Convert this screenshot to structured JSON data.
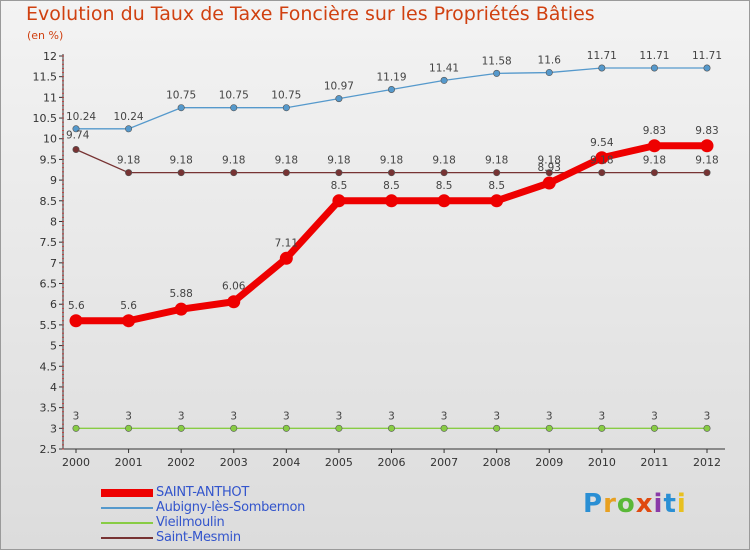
{
  "header": {
    "title": "Evolution du Taux de Taxe Foncière sur les Propriétés Bâties",
    "unit": "(en %)"
  },
  "logo": {
    "text": "Proxiti",
    "colors": [
      "#2a8fd4",
      "#e8a020",
      "#5ab838",
      "#e04a10",
      "#8a3aa8",
      "#2a8fd4",
      "#e8c020"
    ]
  },
  "chart_data": {
    "type": "line",
    "categories": [
      "2000",
      "2001",
      "2002",
      "2003",
      "2004",
      "2005",
      "2006",
      "2007",
      "2008",
      "2009",
      "2010",
      "2011",
      "2012"
    ],
    "ylim": [
      2.5,
      12.0
    ],
    "yticks": [
      "2.5",
      "3",
      "3.5",
      "4",
      "4.5",
      "5",
      "5.5",
      "6",
      "6.5",
      "7",
      "7.5",
      "8",
      "8.5",
      "9",
      "9.5",
      "10",
      "10.5",
      "11",
      "11.5",
      "12"
    ],
    "grid": false,
    "legend_position": "bottom-left",
    "series": [
      {
        "name": "SAINT-ANTHOT",
        "color": "#ee0000",
        "values": [
          5.6,
          5.6,
          5.88,
          6.06,
          7.11,
          8.5,
          8.5,
          8.5,
          8.5,
          8.93,
          9.54,
          9.83,
          9.83
        ],
        "labels": [
          "5.6",
          "5.6",
          "5.88",
          "6.06",
          "7.11",
          "8.5",
          "8.5",
          "8.5",
          "8.5",
          "8.93",
          "9.54",
          "9.83",
          "9.83"
        ]
      },
      {
        "name": "Aubigny-lès-Sombernon",
        "color": "#5599cc",
        "values": [
          10.24,
          10.24,
          10.75,
          10.75,
          10.75,
          10.97,
          11.19,
          11.41,
          11.58,
          11.6,
          11.71,
          11.71,
          11.71
        ],
        "labels": [
          "10.24",
          "10.24",
          "10.75",
          "10.75",
          "10.75",
          "10.97",
          "11.19",
          "11.41",
          "11.58",
          "11.6",
          "11.71",
          "11.71",
          "11.71"
        ]
      },
      {
        "name": "Vieilmoulin",
        "color": "#88cc44",
        "values": [
          3,
          3,
          3,
          3,
          3,
          3,
          3,
          3,
          3,
          3,
          3,
          3,
          3
        ],
        "labels": [
          "3",
          "3",
          "3",
          "3",
          "3",
          "3",
          "3",
          "3",
          "3",
          "3",
          "3",
          "3",
          "3"
        ]
      },
      {
        "name": "Saint-Mesmin",
        "color": "#773333",
        "values": [
          9.74,
          9.18,
          9.18,
          9.18,
          9.18,
          9.18,
          9.18,
          9.18,
          9.18,
          9.18,
          9.18,
          9.18,
          9.18
        ],
        "labels": [
          "9.74",
          "9.18",
          "9.18",
          "9.18",
          "9.18",
          "9.18",
          "9.18",
          "9.18",
          "9.18",
          "9.18",
          "9.18",
          "9.18",
          "9.18"
        ]
      }
    ]
  }
}
